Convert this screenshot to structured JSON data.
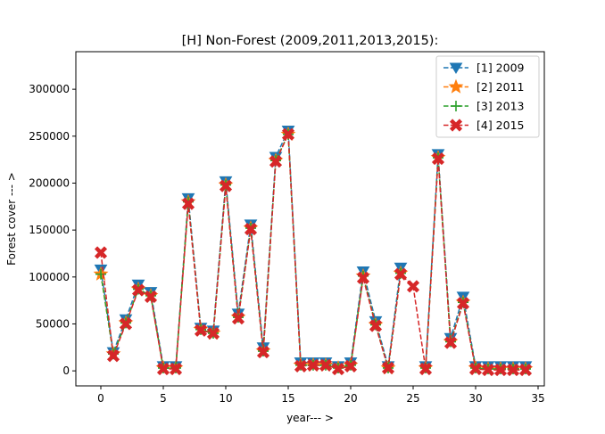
{
  "chart_data": {
    "type": "line",
    "title": "[H] Non-Forest (2009,2011,2013,2015):",
    "xlabel": "year--- >",
    "ylabel": "Forest cover --- >",
    "xlim": [
      -2,
      35.5
    ],
    "ylim": [
      -16000,
      340000
    ],
    "xticks": [
      0,
      5,
      10,
      15,
      20,
      25,
      30,
      35
    ],
    "yticks": [
      0,
      50000,
      100000,
      150000,
      200000,
      250000,
      300000
    ],
    "grid": false,
    "legend_position": "top-right",
    "series": [
      {
        "name": "[1] 2009",
        "color": "#1f77b4",
        "marker": "triangle-down",
        "values": [
          108000,
          20000,
          55000,
          92000,
          84000,
          5000,
          5000,
          184000,
          46000,
          43000,
          202000,
          61000,
          156000,
          25000,
          228000,
          256000,
          9000,
          9000,
          9000,
          5000,
          9000,
          106000,
          53000,
          5000,
          110000,
          null,
          5000,
          231000,
          35000,
          79000,
          5000,
          5000,
          5000,
          5000,
          5000
        ]
      },
      {
        "name": "[2] 2011",
        "color": "#ff7f0e",
        "marker": "star",
        "values": [
          103000,
          18000,
          51000,
          87000,
          80000,
          3000,
          3000,
          180000,
          44000,
          40000,
          198000,
          57000,
          152000,
          21000,
          224000,
          252000,
          6000,
          6000,
          6000,
          3000,
          6000,
          101000,
          49000,
          3000,
          104000,
          null,
          3000,
          227000,
          31000,
          73000,
          3000,
          2000,
          2000,
          2000,
          2000
        ]
      },
      {
        "name": "[3] 2013",
        "color": "#2ca02c",
        "marker": "plus",
        "values": [
          103000,
          18000,
          51000,
          87000,
          80000,
          3000,
          3000,
          180000,
          44000,
          40000,
          198000,
          57000,
          152000,
          21000,
          224000,
          252000,
          6000,
          6000,
          6000,
          3000,
          6000,
          101000,
          49000,
          3000,
          104000,
          null,
          3000,
          227000,
          31000,
          73000,
          3000,
          2000,
          2000,
          2000,
          2000
        ]
      },
      {
        "name": "[4] 2015",
        "color": "#d62728",
        "marker": "x-filled",
        "values": [
          126000,
          16000,
          50000,
          86000,
          79000,
          2000,
          2000,
          178000,
          43000,
          40000,
          197000,
          56000,
          151000,
          20000,
          223000,
          252000,
          5000,
          6000,
          6000,
          2000,
          5000,
          99000,
          48000,
          3000,
          103000,
          90000,
          2000,
          226000,
          30000,
          72000,
          2000,
          1000,
          1000,
          1000,
          1000
        ]
      }
    ]
  }
}
